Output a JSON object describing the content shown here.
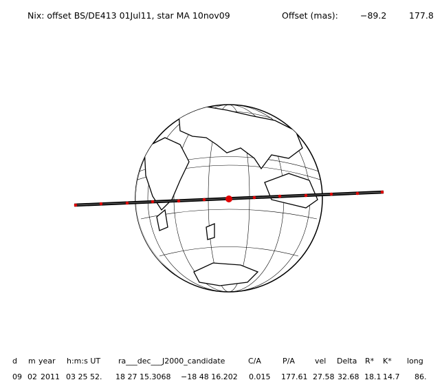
{
  "header": {
    "title": "Nix: offset BS/DE413 01Jul11, star MA 10nov09",
    "offset_label": "Offset (mas):",
    "offset_values": [
      "−89.2",
      "177.8"
    ]
  },
  "table": {
    "headers": [
      "d",
      "m",
      "year",
      "h:m:s UT",
      "ra___dec___J2000_candidate",
      "C/A",
      "P/A",
      "vel",
      "Delta",
      "R*",
      "K*",
      "long"
    ],
    "rows": [
      [
        "09",
        "02",
        "2011",
        "03 25 52.",
        "18 27 15.3068",
        "−18 48 16.202",
        "0.015",
        "177.61",
        "27.58",
        "32.68",
        "18.1",
        "14.7",
        "86."
      ]
    ]
  }
}
